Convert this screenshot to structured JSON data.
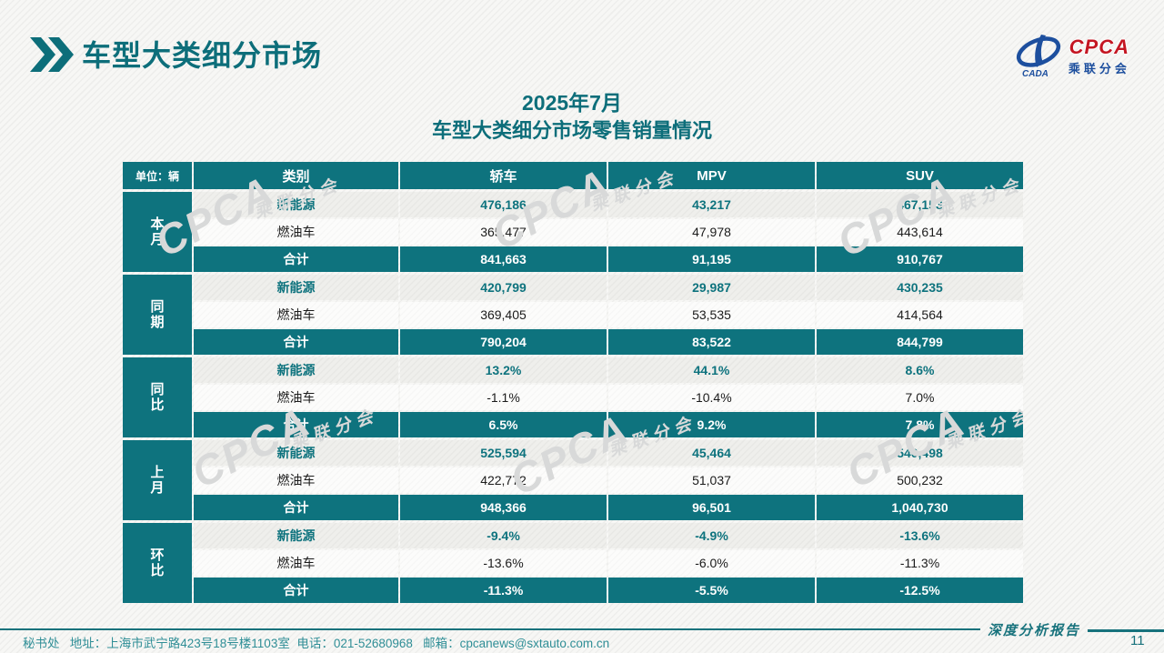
{
  "header": {
    "title": "车型大类细分市场"
  },
  "logo": {
    "name_en": "CPCA",
    "name_cn": "乘联分会",
    "sub_en": "CADA"
  },
  "subtitle": {
    "line1": "2025年7月",
    "line2": "车型大类细分市场零售销量情况"
  },
  "watermark": {
    "en": "CPCA",
    "cn": "乘联分会"
  },
  "footer": {
    "contact": "秘书处   地址：上海市武宁路423号18号楼1103室  电话：021-52680968   邮箱：cpcanews@sxtauto.com.cn",
    "report_label": "深度分析报告",
    "page_number": "11"
  },
  "chart_data": {
    "type": "table",
    "title": "2025年7月 车型大类细分市场零售销量情况",
    "unit": "单位：辆",
    "columns": [
      "类别",
      "轿车",
      "MPV",
      "SUV"
    ],
    "groups": [
      {
        "label": "本月",
        "rows": [
          {
            "name": "新能源",
            "kind": "nev",
            "values": [
              "476,186",
              "43,217",
              "467,153"
            ]
          },
          {
            "name": "燃油车",
            "kind": "ice",
            "values": [
              "365,477",
              "47,978",
              "443,614"
            ]
          },
          {
            "name": "合计",
            "kind": "total",
            "values": [
              "841,663",
              "91,195",
              "910,767"
            ]
          }
        ]
      },
      {
        "label": "同期",
        "rows": [
          {
            "name": "新能源",
            "kind": "nev",
            "values": [
              "420,799",
              "29,987",
              "430,235"
            ]
          },
          {
            "name": "燃油车",
            "kind": "ice",
            "values": [
              "369,405",
              "53,535",
              "414,564"
            ]
          },
          {
            "name": "合计",
            "kind": "total",
            "values": [
              "790,204",
              "83,522",
              "844,799"
            ]
          }
        ]
      },
      {
        "label": "同比",
        "rows": [
          {
            "name": "新能源",
            "kind": "nev",
            "values": [
              "13.2%",
              "44.1%",
              "8.6%"
            ]
          },
          {
            "name": "燃油车",
            "kind": "ice",
            "values": [
              "-1.1%",
              "-10.4%",
              "7.0%"
            ]
          },
          {
            "name": "合计",
            "kind": "total",
            "values": [
              "6.5%",
              "9.2%",
              "7.8%"
            ]
          }
        ]
      },
      {
        "label": "上月",
        "rows": [
          {
            "name": "新能源",
            "kind": "nev",
            "values": [
              "525,594",
              "45,464",
              "540,498"
            ]
          },
          {
            "name": "燃油车",
            "kind": "ice",
            "values": [
              "422,772",
              "51,037",
              "500,232"
            ]
          },
          {
            "name": "合计",
            "kind": "total",
            "values": [
              "948,366",
              "96,501",
              "1,040,730"
            ]
          }
        ]
      },
      {
        "label": "环比",
        "rows": [
          {
            "name": "新能源",
            "kind": "nev",
            "values": [
              "-9.4%",
              "-4.9%",
              "-13.6%"
            ]
          },
          {
            "name": "燃油车",
            "kind": "ice",
            "values": [
              "-13.6%",
              "-6.0%",
              "-11.3%"
            ]
          },
          {
            "name": "合计",
            "kind": "total",
            "values": [
              "-11.3%",
              "-5.5%",
              "-12.5%"
            ]
          }
        ]
      }
    ]
  },
  "colors": {
    "teal": "#0e737e",
    "logo_blue": "#1d4f9e",
    "logo_red": "#c41622"
  }
}
